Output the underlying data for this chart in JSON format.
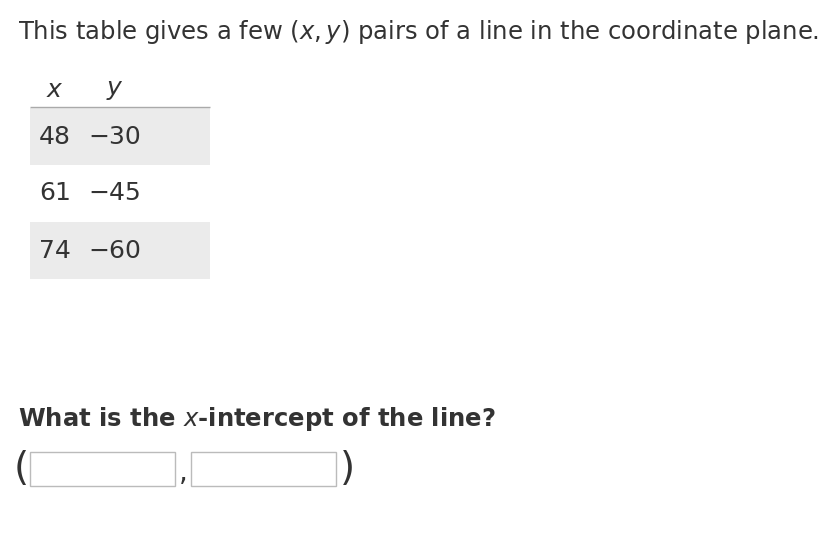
{
  "bg_color": "#ffffff",
  "text_color": "#333333",
  "table_shade_color": "#ebebeb",
  "table_line_color": "#aaaaaa",
  "input_border_color": "#bbbbbb",
  "title_fontsize": 17.5,
  "col_headers": [
    "$x$",
    "$y$"
  ],
  "rows": [
    [
      "48",
      "−30"
    ],
    [
      "61",
      "−45"
    ],
    [
      "74",
      "−60"
    ]
  ],
  "shaded_rows": [
    0,
    2
  ],
  "question": "What is the $x$-intercept of the line?",
  "question_bold": true,
  "fig_width": 8.4,
  "fig_height": 5.44,
  "dpi": 100
}
